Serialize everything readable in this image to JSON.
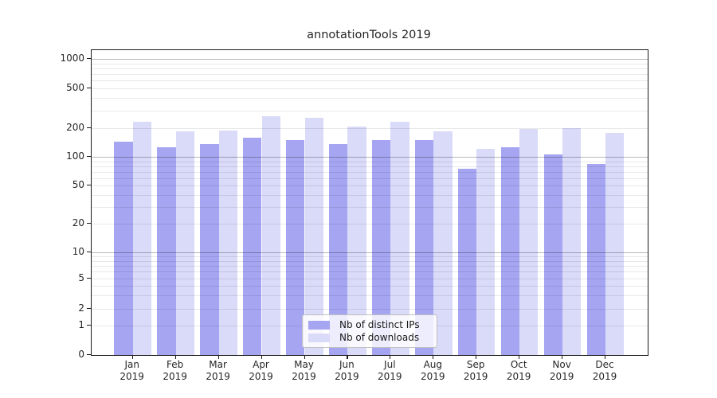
{
  "title": "annotationTools 2019",
  "colors": {
    "ips_bar": "#a5a5f2",
    "downloads_bar": "#dadaf9",
    "grid_minor": "rgba(0,0,0,0.09)",
    "grid_major": "rgba(0,0,0,0.28)",
    "axis_spine": "#1a1a1a",
    "text": "#262626"
  },
  "chart_data": {
    "type": "bar",
    "title": "annotationTools 2019",
    "categories": [
      "Jan 2019",
      "Feb 2019",
      "Mar 2019",
      "Apr 2019",
      "May 2019",
      "Jun 2019",
      "Jul 2019",
      "Aug 2019",
      "Sep 2019",
      "Oct 2019",
      "Nov 2019",
      "Dec 2019"
    ],
    "series": [
      {
        "name": "Nb of distinct IPs",
        "color": "#a5a5f2",
        "values": [
          144,
          125,
          135,
          158,
          151,
          136,
          149,
          151,
          75,
          127,
          106,
          84
        ]
      },
      {
        "name": "Nb of downloads",
        "color": "#dadaf9",
        "values": [
          231,
          187,
          190,
          262,
          252,
          208,
          230,
          187,
          122,
          196,
          202,
          177
        ]
      }
    ],
    "xlabel": "",
    "ylabel": "",
    "yscale": "log-with-zero",
    "yticks": [
      1000,
      500,
      200,
      100,
      50,
      20,
      10,
      5,
      2,
      1,
      0
    ],
    "ylim": [
      0,
      1230
    ],
    "grid": true,
    "legend_position": "lower center"
  }
}
